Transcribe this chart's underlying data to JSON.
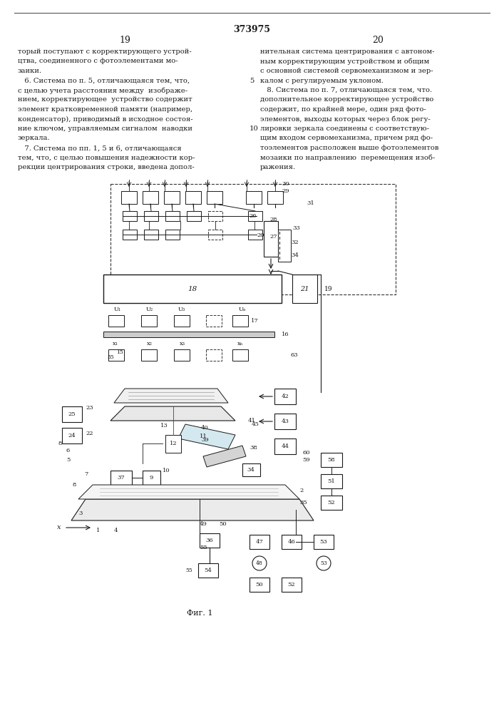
{
  "title": "373975",
  "page_left": "19",
  "page_right": "20",
  "background_color": "#ffffff",
  "text_color": "#1a1a1a",
  "fig_caption": "Фиг. 1",
  "left_column_text": [
    "торый поступают с корректирующего устрой-",
    "цтва, соединенного с фотоэлементами мо-",
    "заики.",
    "   6. Система по п. 5, отличающаяся тем, что,",
    "с целью учета расстояния между  изображе-",
    "нием, корректирующее  устройство содержит",
    "элемент кратковременной памяти (например,",
    "конденсатор), приводимый в исходное состоя-",
    "ние ключом, управляемым сигналом  наводки",
    "зеркала.",
    "   7. Система по пп. 1, 5 и 6, отличающаяся",
    "тем, что, с целью повышения надежности кор-",
    "рекции центрирования строки, введена допол-"
  ],
  "right_column_text": [
    "нительная система центрирования с автоном-",
    "ным корректирующим устройством и общим",
    "с основной системой сервомеханизмом и зер-",
    "калом с регулируемым уклоном.",
    "   8. Система по п. 7, отличающаяся тем, что.",
    "дополнительное корректирующее устройство",
    "содержит, по крайней мере, один ряд фото-",
    "элементов, выходы которых через блок регу-",
    "лировки зеркала соединены с соответствую-",
    "щим входом сервомеханизма, причем ряд фо-",
    "тоэлементов расположен выше фотоэлементов",
    "мозаики по направлению  перемещения изоб-",
    "ражения."
  ]
}
